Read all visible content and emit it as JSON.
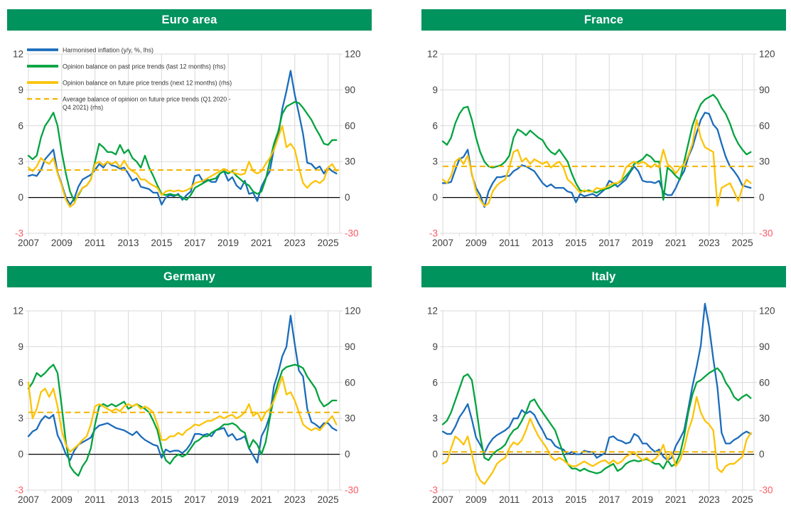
{
  "colors": {
    "header_bg": "#00935e",
    "header_text": "#ffffff",
    "inflation": "#1b6cbb",
    "past": "#00a33e",
    "future": "#fcc306",
    "average": "#f3b400",
    "grid": "#d9d9d9",
    "zero_line": "#000000",
    "tick_label": "#3f3f3f",
    "negative_tick_label": "#fa5a64",
    "legend_text": "#333333"
  },
  "legend": {
    "items": [
      {
        "key": "inflation",
        "style": "solid",
        "lines": [
          "Harmonised inflation (y/y, %, lhs)"
        ]
      },
      {
        "key": "past",
        "style": "solid",
        "lines": [
          "Opinion balance on past price trends (last 12 months) (rhs)"
        ]
      },
      {
        "key": "future",
        "style": "solid",
        "lines": [
          "Opinion balance on future price trends (next 12 months) (rhs)"
        ]
      },
      {
        "key": "average",
        "style": "dashed",
        "lines": [
          "Average balance of opinion on future price trends (Q1 2020 -",
          "Q4 2021) (rhs)"
        ]
      }
    ]
  },
  "axes": {
    "left_ticks": [
      -3,
      0,
      3,
      6,
      9,
      12
    ],
    "right_ticks": [
      -30,
      0,
      30,
      60,
      90,
      120
    ],
    "x_ticks": [
      2007,
      2009,
      2011,
      2013,
      2015,
      2017,
      2019,
      2021,
      2023,
      2025
    ],
    "x_min": 2007,
    "x_max": 2025.7,
    "left_range": [
      -3,
      12
    ],
    "right_range": [
      -30,
      120
    ],
    "grid": true
  },
  "chart_data": [
    {
      "type": "line",
      "title": "Euro area",
      "x_start": 2007,
      "x_step": 0.25,
      "average_future": 23,
      "series": [
        {
          "key": "inflation",
          "name": "Harmonised inflation (y/y, %, lhs)",
          "axis": "lhs",
          "values": [
            1.8,
            1.9,
            1.8,
            2.3,
            3.2,
            3.6,
            4.0,
            2.1,
            1.1,
            0.0,
            -0.6,
            -0.1,
            0.9,
            1.5,
            1.7,
            1.9,
            2.3,
            2.8,
            2.5,
            3.0,
            2.7,
            2.6,
            2.4,
            2.5,
            2.0,
            1.4,
            1.6,
            0.9,
            0.8,
            0.7,
            0.4,
            0.4,
            -0.6,
            0.0,
            0.2,
            0.1,
            0.3,
            -0.2,
            0.2,
            0.5,
            1.8,
            1.9,
            1.3,
            1.5,
            1.3,
            1.3,
            2.0,
            2.2,
            1.4,
            1.7,
            1.0,
            0.7,
            1.4,
            0.3,
            0.4,
            -0.3,
            0.9,
            1.6,
            2.2,
            4.1,
            5.1,
            7.4,
            8.9,
            10.6,
            8.6,
            7.0,
            5.3,
            2.9,
            2.8,
            2.4,
            2.6,
            2.0,
            2.5,
            2.2,
            2.0
          ]
        },
        {
          "key": "past",
          "name": "Opinion balance on past price trends (last 12 months) (rhs)",
          "axis": "rhs",
          "values": [
            35,
            32,
            35,
            50,
            60,
            65,
            71,
            60,
            38,
            20,
            5,
            -3,
            2,
            8,
            10,
            15,
            30,
            45,
            42,
            38,
            38,
            36,
            44,
            37,
            40,
            33,
            30,
            25,
            35,
            25,
            18,
            10,
            3,
            2,
            3,
            2,
            2,
            0,
            -2,
            2,
            8,
            10,
            12,
            14,
            15,
            16,
            20,
            22,
            20,
            22,
            18,
            15,
            12,
            10,
            5,
            3,
            5,
            15,
            30,
            45,
            55,
            70,
            76,
            78,
            80,
            79,
            75,
            70,
            65,
            58,
            52,
            45,
            44,
            48,
            48
          ]
        },
        {
          "key": "future",
          "name": "Opinion balance on future price trends (next 12 months) (rhs)",
          "axis": "rhs",
          "values": [
            25,
            22,
            26,
            33,
            30,
            28,
            33,
            20,
            10,
            -2,
            -8,
            -5,
            3,
            8,
            10,
            15,
            28,
            30,
            27,
            30,
            28,
            30,
            25,
            31,
            25,
            22,
            20,
            15,
            15,
            12,
            10,
            8,
            2,
            5,
            6,
            5,
            6,
            5,
            6,
            8,
            12,
            13,
            14,
            16,
            18,
            20,
            22,
            24,
            22,
            21,
            20,
            19,
            20,
            30,
            22,
            20,
            22,
            28,
            33,
            40,
            50,
            60,
            42,
            45,
            40,
            25,
            12,
            8,
            12,
            14,
            12,
            15,
            25,
            28,
            22
          ]
        }
      ]
    },
    {
      "type": "line",
      "title": "France",
      "x_start": 2007,
      "x_step": 0.25,
      "average_future": 26,
      "series": [
        {
          "key": "inflation",
          "name": "Harmonised inflation (y/y, %, lhs)",
          "axis": "lhs",
          "values": [
            1.2,
            1.2,
            1.3,
            2.3,
            3.2,
            3.4,
            4.0,
            1.9,
            0.8,
            0.2,
            -0.8,
            0.5,
            1.2,
            1.7,
            1.7,
            1.8,
            1.8,
            2.2,
            2.4,
            2.7,
            2.6,
            2.4,
            2.2,
            1.7,
            1.2,
            0.9,
            1.1,
            0.8,
            0.8,
            0.8,
            0.5,
            0.4,
            -0.4,
            0.3,
            0.1,
            0.2,
            0.3,
            0.1,
            0.4,
            0.7,
            1.4,
            1.2,
            0.9,
            1.2,
            1.5,
            2.1,
            2.6,
            2.2,
            1.4,
            1.3,
            1.3,
            1.2,
            1.4,
            0.4,
            0.2,
            0.2,
            0.8,
            1.6,
            2.2,
            3.4,
            4.2,
            5.4,
            6.5,
            7.1,
            7.0,
            6.1,
            5.7,
            4.5,
            3.4,
            2.6,
            2.2,
            1.7,
            1.0,
            0.9,
            0.8
          ]
        },
        {
          "key": "past",
          "name": "Opinion balance on past price trends (last 12 months) (rhs)",
          "axis": "rhs",
          "values": [
            47,
            44,
            50,
            62,
            70,
            75,
            76,
            65,
            50,
            38,
            30,
            26,
            25,
            26,
            27,
            30,
            35,
            50,
            57,
            55,
            52,
            56,
            53,
            50,
            48,
            42,
            38,
            36,
            40,
            35,
            30,
            20,
            12,
            6,
            5,
            6,
            5,
            4,
            6,
            7,
            8,
            10,
            12,
            14,
            18,
            22,
            28,
            30,
            32,
            36,
            34,
            30,
            30,
            -2,
            25,
            22,
            18,
            15,
            30,
            45,
            60,
            70,
            78,
            82,
            84,
            86,
            82,
            75,
            70,
            62,
            52,
            45,
            40,
            36,
            38
          ]
        },
        {
          "key": "future",
          "name": "Opinion balance on future price trends (next 12 months) (rhs)",
          "axis": "rhs",
          "values": [
            15,
            12,
            18,
            30,
            33,
            28,
            35,
            20,
            5,
            -2,
            -7,
            -5,
            5,
            10,
            13,
            15,
            25,
            38,
            40,
            30,
            33,
            28,
            32,
            30,
            28,
            30,
            25,
            28,
            30,
            25,
            15,
            12,
            8,
            4,
            6,
            5,
            5,
            8,
            7,
            8,
            10,
            12,
            12,
            15,
            25,
            28,
            30,
            28,
            30,
            28,
            25,
            28,
            25,
            40,
            28,
            25,
            20,
            25,
            28,
            35,
            45,
            65,
            50,
            42,
            40,
            38,
            -7,
            8,
            10,
            12,
            5,
            -3,
            8,
            15,
            12
          ]
        }
      ]
    },
    {
      "type": "line",
      "title": "Germany",
      "x_start": 2007,
      "x_step": 0.25,
      "average_future": 35,
      "series": [
        {
          "key": "inflation",
          "name": "Harmonised inflation (y/y, %, lhs)",
          "axis": "lhs",
          "values": [
            1.5,
            1.9,
            2.1,
            2.8,
            3.2,
            3.0,
            3.3,
            1.6,
            0.9,
            0.0,
            -0.5,
            0.3,
            0.8,
            1.0,
            1.2,
            1.4,
            2.1,
            2.4,
            2.5,
            2.6,
            2.4,
            2.2,
            2.1,
            2.0,
            1.8,
            1.6,
            1.9,
            1.5,
            1.2,
            1.0,
            0.8,
            0.7,
            -0.3,
            0.4,
            0.2,
            0.3,
            0.3,
            0.1,
            0.4,
            0.9,
            1.7,
            1.7,
            1.6,
            1.7,
            1.5,
            2.0,
            2.1,
            2.2,
            1.5,
            1.7,
            1.2,
            1.3,
            1.5,
            0.5,
            -0.1,
            -0.7,
            1.5,
            2.2,
            3.2,
            5.7,
            6.8,
            8.2,
            9.0,
            11.6,
            9.2,
            7.0,
            6.5,
            3.8,
            2.7,
            2.5,
            2.2,
            2.6,
            2.6,
            2.2,
            2.0
          ]
        },
        {
          "key": "past",
          "name": "Opinion balance on past price trends (last 12 months) (rhs)",
          "axis": "rhs",
          "values": [
            55,
            60,
            68,
            65,
            68,
            72,
            75,
            68,
            40,
            10,
            -10,
            -15,
            -18,
            -10,
            -5,
            5,
            25,
            40,
            42,
            40,
            42,
            40,
            42,
            44,
            38,
            40,
            42,
            40,
            38,
            35,
            28,
            20,
            5,
            -5,
            -8,
            -3,
            0,
            -2,
            0,
            5,
            10,
            12,
            15,
            15,
            18,
            20,
            22,
            25,
            25,
            26,
            24,
            20,
            18,
            5,
            12,
            8,
            0,
            10,
            30,
            48,
            60,
            70,
            73,
            74,
            75,
            74,
            72,
            65,
            60,
            55,
            45,
            40,
            42,
            45,
            45
          ]
        },
        {
          "key": "future",
          "name": "Opinion balance on future price trends (next 12 months) (rhs)",
          "axis": "rhs",
          "values": [
            60,
            30,
            38,
            52,
            55,
            48,
            55,
            40,
            20,
            8,
            2,
            5,
            8,
            12,
            15,
            25,
            40,
            42,
            40,
            38,
            36,
            38,
            36,
            40,
            42,
            40,
            42,
            38,
            40,
            38,
            35,
            25,
            12,
            12,
            15,
            15,
            18,
            16,
            20,
            22,
            25,
            24,
            26,
            28,
            28,
            30,
            32,
            30,
            32,
            33,
            30,
            32,
            35,
            42,
            32,
            35,
            28,
            35,
            38,
            45,
            55,
            65,
            50,
            52,
            45,
            35,
            25,
            22,
            20,
            22,
            20,
            24,
            28,
            32,
            25
          ]
        }
      ]
    },
    {
      "type": "line",
      "title": "Italy",
      "x_start": 2007,
      "x_step": 0.25,
      "average_future": 2,
      "series": [
        {
          "key": "inflation",
          "name": "Harmonised inflation (y/y, %, lhs)",
          "axis": "lhs",
          "values": [
            1.9,
            1.7,
            1.7,
            2.3,
            3.1,
            3.6,
            4.2,
            2.9,
            1.4,
            0.8,
            0.1,
            0.8,
            1.3,
            1.6,
            1.8,
            2.0,
            2.3,
            3.0,
            3.0,
            3.7,
            3.4,
            3.6,
            3.3,
            2.6,
            2.0,
            1.3,
            1.2,
            0.7,
            0.5,
            0.4,
            0.0,
            0.2,
            0.0,
            0.0,
            0.3,
            0.2,
            0.2,
            -0.3,
            -0.1,
            0.1,
            1.4,
            1.5,
            1.2,
            1.1,
            0.9,
            1.0,
            1.7,
            1.5,
            0.9,
            0.9,
            0.5,
            0.2,
            0.4,
            -0.2,
            -0.5,
            -0.3,
            0.7,
            1.3,
            2.0,
            3.8,
            5.7,
            7.3,
            9.1,
            12.6,
            10.7,
            8.0,
            5.6,
            1.8,
            0.9,
            0.9,
            1.2,
            1.4,
            1.7,
            1.9,
            1.7
          ]
        },
        {
          "key": "past",
          "name": "Opinion balance on past price trends (last 12 months) (rhs)",
          "axis": "rhs",
          "values": [
            25,
            28,
            35,
            45,
            55,
            65,
            67,
            62,
            40,
            15,
            -3,
            -5,
            0,
            3,
            5,
            8,
            15,
            20,
            22,
            28,
            35,
            44,
            46,
            40,
            35,
            30,
            25,
            20,
            10,
            0,
            -8,
            -12,
            -12,
            -14,
            -12,
            -14,
            -15,
            -16,
            -15,
            -12,
            -10,
            -8,
            -14,
            -12,
            -8,
            -6,
            -5,
            -6,
            -5,
            -4,
            -6,
            -8,
            -8,
            -12,
            -5,
            -10,
            -8,
            0,
            15,
            35,
            50,
            60,
            62,
            65,
            68,
            70,
            72,
            68,
            60,
            55,
            48,
            45,
            48,
            50,
            47
          ]
        },
        {
          "key": "future",
          "name": "Opinion balance on future price trends (next 12 months) (rhs)",
          "axis": "rhs",
          "values": [
            -8,
            -6,
            5,
            15,
            12,
            8,
            15,
            0,
            -15,
            -22,
            -25,
            -20,
            -15,
            -8,
            -5,
            -3,
            5,
            10,
            8,
            12,
            20,
            30,
            22,
            15,
            10,
            5,
            -2,
            -5,
            -3,
            -5,
            -8,
            -10,
            -10,
            -8,
            -6,
            -8,
            -10,
            -8,
            -6,
            -5,
            -8,
            -5,
            -8,
            -6,
            -2,
            0,
            2,
            -2,
            -5,
            -3,
            -6,
            -4,
            0,
            8,
            -5,
            2,
            -10,
            -5,
            5,
            20,
            30,
            48,
            35,
            28,
            25,
            20,
            -12,
            -15,
            -10,
            -8,
            -8,
            -5,
            -2,
            12,
            18
          ]
        }
      ]
    }
  ]
}
